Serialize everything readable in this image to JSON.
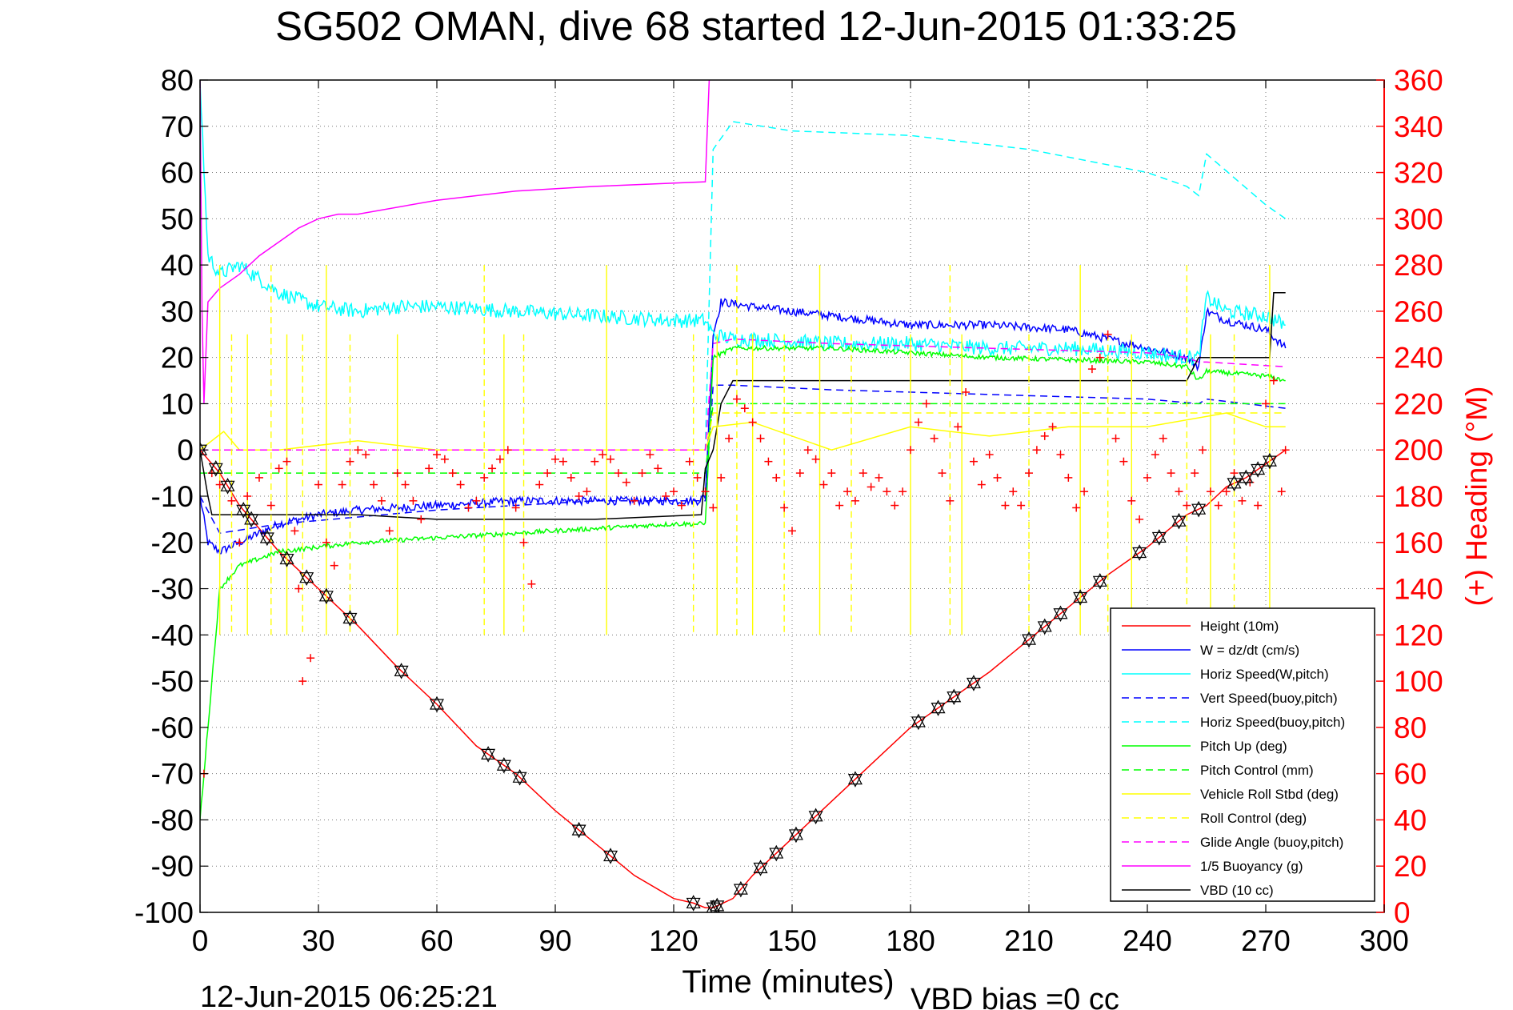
{
  "chart_data": {
    "type": "line",
    "title": "SG502 OMAN, dive 68 started 12-Jun-2015 01:33:25",
    "xlabel": "Time (minutes)",
    "ylabel": "",
    "ylabel_right": "(+) Heading (°M)",
    "footer_left": "12-Jun-2015 06:25:21",
    "footer_right": "VBD bias =0 cc",
    "xlim": [
      0,
      300
    ],
    "ylim": [
      -100,
      80
    ],
    "ylim_right": [
      0,
      360
    ],
    "xticks": [
      "0",
      "30",
      "60",
      "90",
      "120",
      "150",
      "180",
      "210",
      "240",
      "270",
      "300"
    ],
    "yticks": [
      "80",
      "70",
      "60",
      "50",
      "40",
      "30",
      "20",
      "10",
      "0",
      "-10",
      "-20",
      "-30",
      "-40",
      "-50",
      "-60",
      "-70",
      "-80",
      "-90",
      "-100"
    ],
    "yticks_right": [
      "360",
      "340",
      "320",
      "300",
      "280",
      "260",
      "240",
      "220",
      "200",
      "180",
      "160",
      "140",
      "120",
      "100",
      "80",
      "60",
      "40",
      "20",
      "0"
    ],
    "grid": true,
    "legend_position": "bottom-right",
    "colors": {
      "height": "#ff0000",
      "w": "#0000ff",
      "horiz": "#00ffff",
      "pitch": "#00ff00",
      "roll": "#ffff00",
      "glide": "#ff00ff",
      "buoyancy": "#ff00ff",
      "vbd": "#000000",
      "heading": "#ff0000",
      "right_axis": "#ff0000"
    },
    "series": [
      {
        "name": "Height (10m)",
        "style": "solid",
        "color": "#ff0000",
        "x": [
          0,
          5,
          10,
          20,
          30,
          40,
          50,
          60,
          70,
          80,
          90,
          100,
          110,
          120,
          125,
          128,
          130,
          135,
          140,
          150,
          160,
          170,
          180,
          190,
          200,
          210,
          220,
          230,
          240,
          250,
          255,
          260,
          265,
          270,
          275
        ],
        "y": [
          0,
          -5,
          -12,
          -22,
          -30,
          -38,
          -47,
          -55,
          -64,
          -70,
          -78,
          -85,
          -92,
          -97,
          -98,
          -99,
          -99,
          -97,
          -92,
          -84,
          -76,
          -68,
          -60,
          -54,
          -48,
          -41,
          -34,
          -27,
          -21,
          -14,
          -12,
          -8,
          -6,
          -3,
          0
        ]
      },
      {
        "name": "W = dz/dt (cm/s)",
        "style": "solid",
        "color": "#0000ff",
        "x": [
          0,
          2,
          5,
          10,
          15,
          20,
          30,
          40,
          60,
          80,
          100,
          120,
          126,
          128,
          130,
          132,
          140,
          160,
          180,
          200,
          220,
          240,
          250,
          253,
          255,
          260,
          270,
          275
        ],
        "y": [
          -10,
          -20,
          -22,
          -20,
          -18,
          -16,
          -14,
          -13,
          -12,
          -11,
          -11,
          -11,
          -11,
          -10,
          25,
          32,
          31,
          29,
          27,
          27,
          26,
          22,
          20,
          18,
          30,
          28,
          26,
          22
        ]
      },
      {
        "name": "Horiz Speed(W,pitch)",
        "style": "solid",
        "color": "#00ffff",
        "x": [
          0,
          2,
          5,
          10,
          15,
          20,
          30,
          40,
          50,
          60,
          80,
          100,
          120,
          128,
          130,
          135,
          140,
          160,
          180,
          200,
          220,
          240,
          250,
          253,
          255,
          260,
          270,
          275
        ],
        "y": [
          80,
          42,
          38,
          40,
          37,
          34,
          31,
          30,
          31,
          31,
          30,
          29,
          28,
          28,
          25,
          24,
          24,
          23,
          23,
          22,
          22,
          21,
          20,
          20,
          33,
          30,
          29,
          27
        ]
      },
      {
        "name": "Vert Speed(buoy,pitch)",
        "style": "dashed",
        "color": "#0000ff",
        "x": [
          0,
          5,
          20,
          60,
          100,
          128,
          130,
          135,
          160,
          200,
          240,
          253,
          255,
          275
        ],
        "y": [
          -10,
          -18,
          -16,
          -13,
          -11,
          -11,
          14,
          14,
          13,
          12,
          11,
          10,
          11,
          9
        ]
      },
      {
        "name": "Horiz Speed(buoy,pitch)",
        "style": "dashed",
        "color": "#00ffff",
        "x": [
          0,
          128,
          130,
          135,
          150,
          180,
          210,
          240,
          250,
          253,
          255,
          270,
          275
        ],
        "y": [
          0,
          0,
          65,
          71,
          69,
          68,
          65,
          60,
          57,
          55,
          64,
          53,
          50
        ]
      },
      {
        "name": "Pitch Up (deg)",
        "style": "solid",
        "color": "#00ff00",
        "x": [
          0,
          2,
          5,
          10,
          20,
          40,
          60,
          80,
          100,
          120,
          128,
          130,
          135,
          160,
          200,
          240,
          250,
          253,
          255,
          270,
          275
        ],
        "y": [
          -80,
          -60,
          -30,
          -25,
          -22,
          -20,
          -19,
          -18,
          -17,
          -16,
          -16,
          20,
          22,
          22,
          20,
          19,
          18,
          15,
          17,
          16,
          15
        ]
      },
      {
        "name": "Pitch Control (mm)",
        "style": "dashed",
        "color": "#00ff00",
        "x": [
          0,
          128,
          130,
          270,
          275
        ],
        "y": [
          -5,
          -5,
          10,
          10,
          10
        ]
      },
      {
        "name": "Vehicle Roll Stbd (deg)",
        "style": "solid",
        "color": "#ffff00",
        "x": [
          0,
          3,
          6,
          10,
          20,
          40,
          60,
          80,
          100,
          120,
          128,
          130,
          140,
          160,
          180,
          200,
          220,
          240,
          260,
          270,
          275
        ],
        "y": [
          0,
          2,
          4,
          0,
          0,
          2,
          0,
          0,
          0,
          0,
          0,
          5,
          6,
          0,
          5,
          3,
          5,
          5,
          8,
          5,
          5
        ]
      },
      {
        "name": "Roll Control (deg)",
        "style": "dashed",
        "color": "#ffff00",
        "x": [
          0,
          128,
          130,
          275
        ],
        "y": [
          0,
          0,
          8,
          8
        ]
      },
      {
        "name": "Glide Angle (buoy,pitch)",
        "style": "dashed",
        "color": "#ff00ff",
        "x": [
          0,
          128,
          130,
          135,
          160,
          200,
          240,
          250,
          253,
          255,
          275
        ],
        "y": [
          0,
          0,
          23,
          24,
          23,
          22,
          21,
          20,
          19,
          19,
          18
        ]
      },
      {
        "name": "1/5 Buoyancy (g)",
        "style": "solid",
        "color": "#ff00ff",
        "x": [
          0,
          0.5,
          1,
          2,
          5,
          10,
          15,
          20,
          25,
          30,
          35,
          40,
          60,
          80,
          100,
          128,
          129
        ],
        "y": [
          80,
          30,
          10,
          32,
          35,
          38,
          42,
          45,
          48,
          50,
          51,
          51,
          54,
          56,
          57,
          58,
          80
        ]
      },
      {
        "name": "VBD (10 cc)",
        "style": "solid",
        "color": "#000000",
        "x": [
          0,
          2,
          3,
          40,
          60,
          80,
          100,
          127,
          128,
          130,
          132,
          135,
          250,
          253,
          254,
          271,
          272,
          275
        ],
        "y": [
          0,
          -10,
          -14,
          -14,
          -15,
          -15,
          -15,
          -14,
          -4,
          0,
          10,
          15,
          15,
          20,
          20,
          20,
          34,
          34
        ]
      }
    ],
    "heading_series": {
      "name": "(+) Heading (°M)",
      "axis": "right",
      "x": [
        1,
        3,
        5,
        8,
        10,
        12,
        15,
        18,
        20,
        22,
        24,
        25,
        26,
        28,
        30,
        32,
        34,
        36,
        38,
        40,
        42,
        44,
        46,
        48,
        50,
        52,
        54,
        56,
        58,
        60,
        62,
        64,
        66,
        68,
        70,
        72,
        74,
        76,
        78,
        80,
        82,
        84,
        86,
        88,
        90,
        92,
        94,
        96,
        98,
        100,
        102,
        104,
        106,
        108,
        110,
        112,
        114,
        116,
        118,
        120,
        122,
        124,
        126,
        128,
        130,
        132,
        134,
        136,
        138,
        140,
        142,
        144,
        146,
        148,
        150,
        152,
        154,
        156,
        158,
        160,
        162,
        164,
        166,
        168,
        170,
        172,
        174,
        176,
        178,
        180,
        182,
        184,
        186,
        188,
        190,
        192,
        194,
        196,
        198,
        200,
        202,
        204,
        206,
        208,
        210,
        212,
        214,
        216,
        218,
        220,
        222,
        224,
        226,
        228,
        230,
        232,
        234,
        236,
        238,
        240,
        242,
        244,
        246,
        248,
        250,
        252,
        254,
        256,
        258,
        260,
        262,
        264,
        266,
        268,
        270,
        272,
        274,
        275
      ],
      "y": [
        60,
        190,
        185,
        178,
        160,
        180,
        188,
        176,
        192,
        195,
        165,
        140,
        100,
        110,
        185,
        160,
        150,
        185,
        195,
        200,
        198,
        185,
        178,
        165,
        190,
        185,
        178,
        170,
        192,
        198,
        196,
        190,
        185,
        175,
        178,
        188,
        192,
        196,
        200,
        175,
        160,
        142,
        185,
        190,
        196,
        195,
        188,
        180,
        182,
        195,
        198,
        196,
        190,
        186,
        178,
        190,
        198,
        192,
        180,
        182,
        176,
        195,
        188,
        182,
        175,
        188,
        205,
        222,
        218,
        212,
        205,
        195,
        188,
        175,
        165,
        190,
        200,
        196,
        185,
        190,
        176,
        182,
        178,
        190,
        184,
        188,
        182,
        176,
        182,
        200,
        212,
        220,
        205,
        190,
        178,
        210,
        225,
        195,
        185,
        198,
        188,
        176,
        182,
        176,
        190,
        200,
        206,
        210,
        198,
        188,
        175,
        182,
        235,
        240,
        250,
        205,
        195,
        178,
        170,
        188,
        198,
        205,
        190,
        182,
        176,
        190,
        200,
        182,
        176,
        182,
        190,
        178,
        186,
        176,
        220,
        230,
        182,
        200
      ]
    },
    "depth_markers_x": [
      0,
      4,
      7,
      11,
      13,
      17,
      22,
      27,
      32,
      38,
      51,
      60,
      73,
      77,
      81,
      96,
      104,
      125,
      130,
      131,
      137,
      142,
      146,
      151,
      156,
      166,
      182,
      187,
      191,
      196,
      210,
      214,
      218,
      223,
      228,
      238,
      243,
      248,
      253,
      262,
      265,
      268,
      271
    ]
  }
}
